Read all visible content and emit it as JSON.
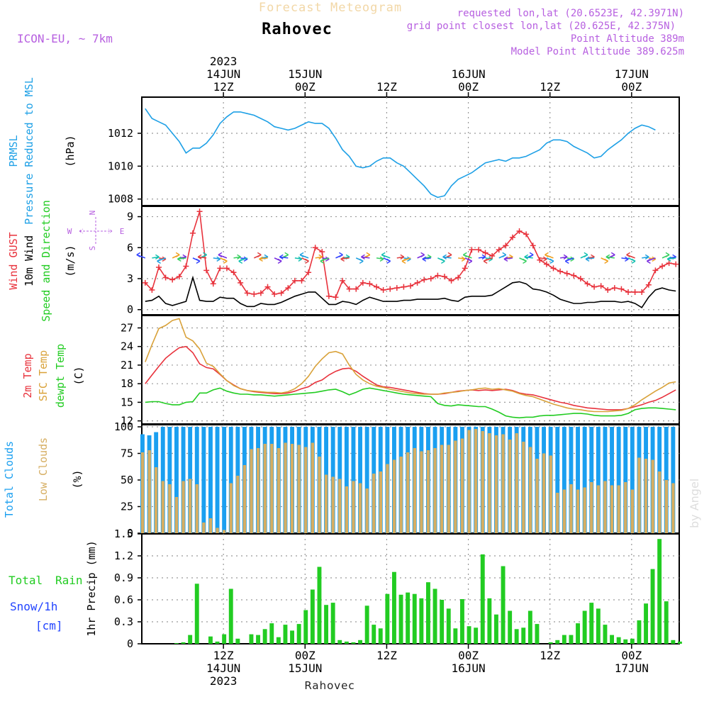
{
  "header": {
    "product": "Forecast Meteogram",
    "location": "Rahovec",
    "model": "ICON-EU, ~ 7km",
    "requested": "requested lon,lat (20.6523E, 42.3971N)",
    "grid_point": "grid point closest lon,lat (20.625E, 42.375N)",
    "point_altitude": "Point Altitude 389m",
    "model_altitude": "Model Point Altitude 389.625m",
    "credit": "by Angel",
    "footer_location": "Rahovec"
  },
  "colors": {
    "pressure": "#1ea0e6",
    "gust": "#e8323c",
    "wind10m": "#000000",
    "temp2m": "#e8323c",
    "sfc_temp": "#d9a23a",
    "dewpt": "#22cc22",
    "total_clouds": "#1a9ff0",
    "low_clouds": "#d6ae62",
    "rain": "#22cc22",
    "snow": "#2244ff",
    "header_purple": "#b760e0",
    "grid": "#999999"
  },
  "axis_time": {
    "top_ticks": [
      {
        "hour": 12,
        "lines": [
          "2023",
          "14JUN",
          "12Z"
        ]
      },
      {
        "hour": 24,
        "lines": [
          "15JUN",
          "00Z"
        ]
      },
      {
        "hour": 36,
        "lines": [
          "12Z"
        ]
      },
      {
        "hour": 48,
        "lines": [
          "16JUN",
          "00Z"
        ]
      },
      {
        "hour": 60,
        "lines": [
          "12Z"
        ]
      },
      {
        "hour": 72,
        "lines": [
          "17JUN",
          "00Z"
        ]
      }
    ],
    "bottom_ticks": [
      {
        "hour": 12,
        "lines": [
          "12Z",
          "14JUN",
          "2023"
        ]
      },
      {
        "hour": 24,
        "lines": [
          "00Z",
          "15JUN"
        ]
      },
      {
        "hour": 36,
        "lines": [
          "12Z"
        ]
      },
      {
        "hour": 48,
        "lines": [
          "00Z",
          "16JUN"
        ]
      },
      {
        "hour": 60,
        "lines": [
          "12Z"
        ]
      },
      {
        "hour": 72,
        "lines": [
          "00Z",
          "17JUN"
        ]
      }
    ]
  },
  "chart_data": [
    {
      "type": "line",
      "title": "PRMSL Pressure Reduced to MSL",
      "ylabel_lines": [
        "PRMSL",
        "Pressure Reduced to MSL"
      ],
      "unit": "(hPa)",
      "ylim": [
        1007.6,
        1014.2
      ],
      "yticks": [
        1008,
        1010,
        1012
      ],
      "x_hours": {
        "start": 0.5,
        "step": 1
      },
      "series": [
        {
          "name": "PRMSL",
          "values": [
            1013.5,
            1012.9,
            1012.7,
            1012.5,
            1012.0,
            1011.5,
            1010.8,
            1011.1,
            1011.1,
            1011.4,
            1011.9,
            1012.6,
            1013.0,
            1013.3,
            1013.3,
            1013.2,
            1013.1,
            1012.9,
            1012.7,
            1012.4,
            1012.3,
            1012.2,
            1012.3,
            1012.5,
            1012.7,
            1012.6,
            1012.6,
            1012.3,
            1011.7,
            1011.0,
            1010.6,
            1010.0,
            1009.9,
            1010.0,
            1010.3,
            1010.5,
            1010.5,
            1010.2,
            1010.0,
            1009.6,
            1009.2,
            1008.8,
            1008.3,
            1008.1,
            1008.2,
            1008.8,
            1009.2,
            1009.4,
            1009.6,
            1009.9,
            1010.2,
            1010.3,
            1010.4,
            1010.3,
            1010.5,
            1010.5,
            1010.6,
            1010.8,
            1011.0,
            1011.4,
            1011.6,
            1011.6,
            1011.5,
            1011.2,
            1011.0,
            1010.8,
            1010.5,
            1010.6,
            1011.0,
            1011.3,
            1011.6,
            1012.0,
            1012.3,
            1012.5,
            1012.4,
            1012.2
          ]
        }
      ]
    },
    {
      "type": "line",
      "title": "Wind GUST, 10m Wind Speed and Direction",
      "ylabel_lines": [
        "Wind GUST",
        "10m Wind",
        "Speed and Direction"
      ],
      "unit": "(m/s)",
      "compass": [
        "N",
        "S",
        "W",
        "E"
      ],
      "ylim": [
        -0.5,
        10
      ],
      "yticks": [
        0,
        3,
        6,
        9
      ],
      "x_hours": {
        "start": 0.5,
        "step": 1
      },
      "series": [
        {
          "name": "Wind GUST",
          "values": [
            2.6,
            1.9,
            4.1,
            3.1,
            2.9,
            3.2,
            4.2,
            7.4,
            9.5,
            3.8,
            2.5,
            4.0,
            4.0,
            3.6,
            2.6,
            1.6,
            1.5,
            1.6,
            2.2,
            1.5,
            1.6,
            2.1,
            2.8,
            2.8,
            3.6,
            6.0,
            5.6,
            1.3,
            1.2,
            2.8,
            2.0,
            2.0,
            2.6,
            2.5,
            2.2,
            1.9,
            2.0,
            2.1,
            2.2,
            2.3,
            2.6,
            2.9,
            3.0,
            3.3,
            3.2,
            2.8,
            3.1,
            4.0,
            5.8,
            5.8,
            5.5,
            5.2,
            5.8,
            6.2,
            7.0,
            7.6,
            7.3,
            6.2,
            4.8,
            4.4,
            4.0,
            3.7,
            3.5,
            3.3,
            3.0,
            2.5,
            2.2,
            2.3,
            1.9,
            2.1,
            2.0,
            1.7,
            1.7,
            1.7,
            2.4,
            3.8,
            4.2,
            4.5,
            4.4
          ]
        },
        {
          "name": "10m Wind",
          "values": [
            0.8,
            0.9,
            1.3,
            0.6,
            0.4,
            0.6,
            0.8,
            3.1,
            0.9,
            0.8,
            0.8,
            1.2,
            1.1,
            1.1,
            0.6,
            0.3,
            0.3,
            0.6,
            0.5,
            0.5,
            0.7,
            1.0,
            1.3,
            1.5,
            1.7,
            1.7,
            1.1,
            0.5,
            0.5,
            0.8,
            0.7,
            0.5,
            0.9,
            1.2,
            1.0,
            0.8,
            0.8,
            0.8,
            0.9,
            0.9,
            1.0,
            1.0,
            1.0,
            1.0,
            1.1,
            0.9,
            0.8,
            1.2,
            1.3,
            1.3,
            1.3,
            1.4,
            1.8,
            2.2,
            2.6,
            2.7,
            2.5,
            2.0,
            1.9,
            1.7,
            1.4,
            1.0,
            0.8,
            0.6,
            0.6,
            0.7,
            0.7,
            0.8,
            0.8,
            0.8,
            0.7,
            0.8,
            0.6,
            0.2,
            1.2,
            1.9,
            2.1,
            1.9,
            1.8
          ]
        }
      ],
      "direction_barbs": "arrows at y=5 m/s, colored by speed"
    },
    {
      "type": "line",
      "title": "2m Temp, SFC Temp, dewpt Temp",
      "ylabel_lines": [
        "2m Temp",
        "SFC Temp",
        "dewpt Temp"
      ],
      "unit": "(C)",
      "ylim": [
        11.5,
        29
      ],
      "yticks": [
        12,
        15,
        18,
        21,
        24,
        27
      ],
      "x_hours": {
        "start": 0.5,
        "step": 1
      },
      "series": [
        {
          "name": "2m Temp",
          "values": [
            18.0,
            19.4,
            20.8,
            22.1,
            23.0,
            23.8,
            24.0,
            23.0,
            21.2,
            20.6,
            20.4,
            19.5,
            18.5,
            17.8,
            17.2,
            16.9,
            16.7,
            16.6,
            16.5,
            16.4,
            16.4,
            16.5,
            16.8,
            17.2,
            17.5,
            18.2,
            18.6,
            19.4,
            20.0,
            20.4,
            20.5,
            20.0,
            19.2,
            18.5,
            17.8,
            17.5,
            17.4,
            17.2,
            17.0,
            16.8,
            16.6,
            16.4,
            16.3,
            16.3,
            16.4,
            16.6,
            16.8,
            16.9,
            17.0,
            16.9,
            17.0,
            16.9,
            17.0,
            17.1,
            16.9,
            16.5,
            16.3,
            16.2,
            15.9,
            15.6,
            15.3,
            15.0,
            14.8,
            14.5,
            14.3,
            14.1,
            14.0,
            13.9,
            13.8,
            13.8,
            13.8,
            14.0,
            14.3,
            14.6,
            15.0,
            15.3,
            15.8,
            16.4,
            17.0
          ]
        },
        {
          "name": "SFC Temp",
          "values": [
            21.5,
            24.3,
            26.9,
            27.4,
            28.2,
            28.5,
            25.5,
            24.9,
            23.6,
            21.3,
            20.8,
            19.6,
            18.5,
            17.7,
            17.2,
            16.9,
            16.8,
            16.7,
            16.6,
            16.6,
            16.5,
            16.7,
            17.2,
            18.0,
            19.2,
            20.8,
            22.0,
            23.0,
            23.2,
            22.8,
            21.0,
            19.5,
            18.6,
            18.0,
            17.6,
            17.4,
            17.1,
            16.9,
            16.7,
            16.5,
            16.4,
            16.3,
            16.3,
            16.3,
            16.5,
            16.6,
            16.7,
            16.9,
            17.0,
            17.2,
            17.3,
            17.1,
            17.2,
            17.0,
            16.8,
            16.4,
            16.1,
            15.9,
            15.5,
            15.1,
            14.7,
            14.4,
            14.1,
            13.9,
            13.8,
            13.6,
            13.5,
            13.5,
            13.5,
            13.6,
            13.7,
            14.0,
            14.6,
            15.4,
            16.1,
            16.8,
            17.4,
            18.1,
            18.3
          ]
        },
        {
          "name": "dewpt Temp",
          "values": [
            15.0,
            15.1,
            15.1,
            14.8,
            14.6,
            14.6,
            15.0,
            15.1,
            16.5,
            16.5,
            17.0,
            17.3,
            16.8,
            16.5,
            16.3,
            16.3,
            16.2,
            16.2,
            16.1,
            16.0,
            16.1,
            16.2,
            16.3,
            16.4,
            16.5,
            16.6,
            16.8,
            17.0,
            17.1,
            16.7,
            16.2,
            16.6,
            17.1,
            17.3,
            17.1,
            16.9,
            16.7,
            16.5,
            16.3,
            16.2,
            16.1,
            16.0,
            15.9,
            14.8,
            14.5,
            14.4,
            14.6,
            14.5,
            14.4,
            14.3,
            14.3,
            13.9,
            13.4,
            12.8,
            12.6,
            12.5,
            12.6,
            12.6,
            12.8,
            12.9,
            12.9,
            13.0,
            13.1,
            13.2,
            13.2,
            13.1,
            12.9,
            12.8,
            12.8,
            12.8,
            12.9,
            13.2,
            13.8,
            14.0,
            14.1,
            14.1,
            14.0,
            13.9,
            13.8
          ]
        }
      ]
    },
    {
      "type": "bar",
      "title": "Total Clouds, Low Clouds",
      "ylabel_lines": [
        "Total Clouds",
        "Low Clouds"
      ],
      "unit": "(%)",
      "ylim": [
        0,
        102
      ],
      "yticks": [
        0,
        25,
        50,
        75,
        100
      ],
      "x_hours": {
        "start": 0,
        "step": 1
      },
      "series": [
        {
          "name": "Total Clouds",
          "values": [
            93,
            92,
            95,
            100,
            100,
            100,
            100,
            100,
            100,
            100,
            100,
            100,
            100,
            100,
            100,
            100,
            100,
            100,
            100,
            100,
            100,
            100,
            100,
            100,
            100,
            100,
            100,
            100,
            100,
            100,
            100,
            100,
            100,
            100,
            100,
            100,
            100,
            100,
            100,
            100,
            100,
            100,
            100,
            100,
            100,
            100,
            100,
            100,
            100,
            100,
            100,
            100,
            100,
            100,
            100,
            100,
            100,
            100,
            100,
            100,
            100,
            100,
            100,
            100,
            100,
            100,
            100,
            100,
            100,
            100,
            100,
            100,
            100,
            100,
            100,
            100,
            100,
            100,
            100
          ]
        },
        {
          "name": "Low Clouds",
          "values": [
            76,
            78,
            62,
            49,
            46,
            34,
            49,
            51,
            46,
            10,
            14,
            5,
            3,
            47,
            54,
            64,
            79,
            80,
            84,
            84,
            80,
            85,
            84,
            83,
            81,
            85,
            72,
            55,
            53,
            51,
            44,
            49,
            47,
            42,
            56,
            58,
            65,
            69,
            72,
            76,
            80,
            77,
            78,
            80,
            83,
            83,
            87,
            89,
            97,
            98,
            96,
            94,
            92,
            93,
            88,
            94,
            86,
            81,
            70,
            75,
            73,
            38,
            41,
            46,
            41,
            43,
            48,
            45,
            49,
            45,
            45,
            48,
            41,
            71,
            70,
            69,
            58,
            50,
            47
          ]
        }
      ]
    },
    {
      "type": "bar",
      "title": "Total Rain, Snow/1h, 1hr Precip",
      "ylabel_lines": [
        "Total Rain",
        "Snow/1h [cm]"
      ],
      "unit": "1hr Precip (mm)",
      "ylim": [
        0,
        1.5
      ],
      "yticks": [
        0,
        0.3,
        0.6,
        0.9,
        1.2,
        1.5
      ],
      "x_hours": {
        "start": 0,
        "step": 1
      },
      "series": [
        {
          "name": "Total Rain",
          "values": [
            0,
            0,
            0,
            0,
            0,
            0.01,
            0.02,
            0.12,
            0.82,
            0,
            0.1,
            0.03,
            0.13,
            0.75,
            0.07,
            0,
            0.13,
            0.12,
            0.2,
            0.28,
            0.09,
            0.26,
            0.18,
            0.27,
            0.46,
            0.74,
            1.05,
            0.53,
            0.56,
            0.05,
            0.03,
            0.02,
            0.05,
            0.52,
            0.26,
            0.21,
            0.68,
            0.98,
            0.67,
            0.7,
            0.68,
            0.62,
            0.84,
            0.75,
            0.6,
            0.48,
            0.21,
            0.61,
            0.24,
            0.22,
            1.22,
            0.62,
            0.4,
            1.06,
            0.45,
            0.2,
            0.22,
            0.45,
            0.27,
            0,
            0.02,
            0.05,
            0.12,
            0.12,
            0.28,
            0.45,
            0.56,
            0.48,
            0.26,
            0.12,
            0.09,
            0.06,
            0.07,
            0.32,
            0.55,
            1.02,
            1.43,
            0.58,
            0.05,
            0.03
          ]
        }
      ]
    }
  ]
}
